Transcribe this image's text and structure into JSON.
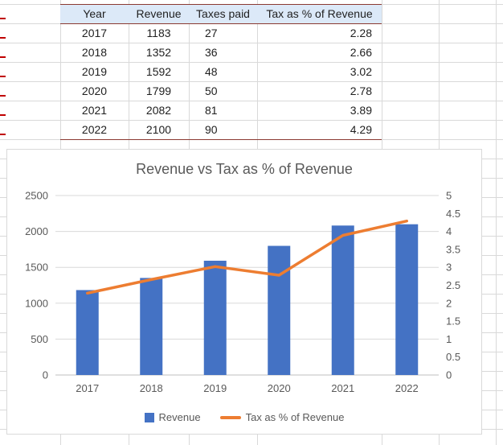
{
  "colors": {
    "bar": "#4472C4",
    "line": "#ED7D31",
    "header_fill": "#DCE9F8",
    "table_border": "#8B3A32",
    "red_mark": "#C00000",
    "grid": "#D9D9D9",
    "axis_line": "#BFBFBF",
    "axis_text": "#595959",
    "cell_text": "#1F1F1F"
  },
  "table": {
    "headers": [
      "Year",
      "Revenue",
      "Taxes paid",
      "Tax as % of Revenue"
    ],
    "rows": [
      [
        "2017",
        "1183",
        "27",
        "2.28"
      ],
      [
        "2018",
        "1352",
        "36",
        "2.66"
      ],
      [
        "2019",
        "1592",
        "48",
        "3.02"
      ],
      [
        "2020",
        "1799",
        "50",
        "2.78"
      ],
      [
        "2021",
        "2082",
        "81",
        "3.89"
      ],
      [
        "2022",
        "2100",
        "90",
        "4.29"
      ]
    ]
  },
  "chart_data": {
    "type": "bar",
    "subtype": "combo-bar-line",
    "title": "Revenue vs Tax as % of Revenue",
    "categories": [
      "2017",
      "2018",
      "2019",
      "2020",
      "2021",
      "2022"
    ],
    "series": [
      {
        "name": "Revenue",
        "type": "bar",
        "axis": "left",
        "values": [
          1183,
          1352,
          1592,
          1799,
          2082,
          2100
        ]
      },
      {
        "name": "Tax as % of Revenue",
        "type": "line",
        "axis": "right",
        "values": [
          2.28,
          2.66,
          3.02,
          2.78,
          3.89,
          4.29
        ]
      }
    ],
    "left_axis": {
      "min": 0,
      "max": 2500,
      "step": 500,
      "ticks": [
        "0",
        "500",
        "1000",
        "1500",
        "2000",
        "2500"
      ]
    },
    "right_axis": {
      "min": 0,
      "max": 5,
      "step": 0.5,
      "ticks": [
        "0",
        "0.5",
        "1",
        "1.5",
        "2",
        "2.5",
        "3",
        "3.5",
        "4",
        "4.5",
        "5"
      ]
    },
    "grid": true,
    "legend_position": "bottom"
  }
}
